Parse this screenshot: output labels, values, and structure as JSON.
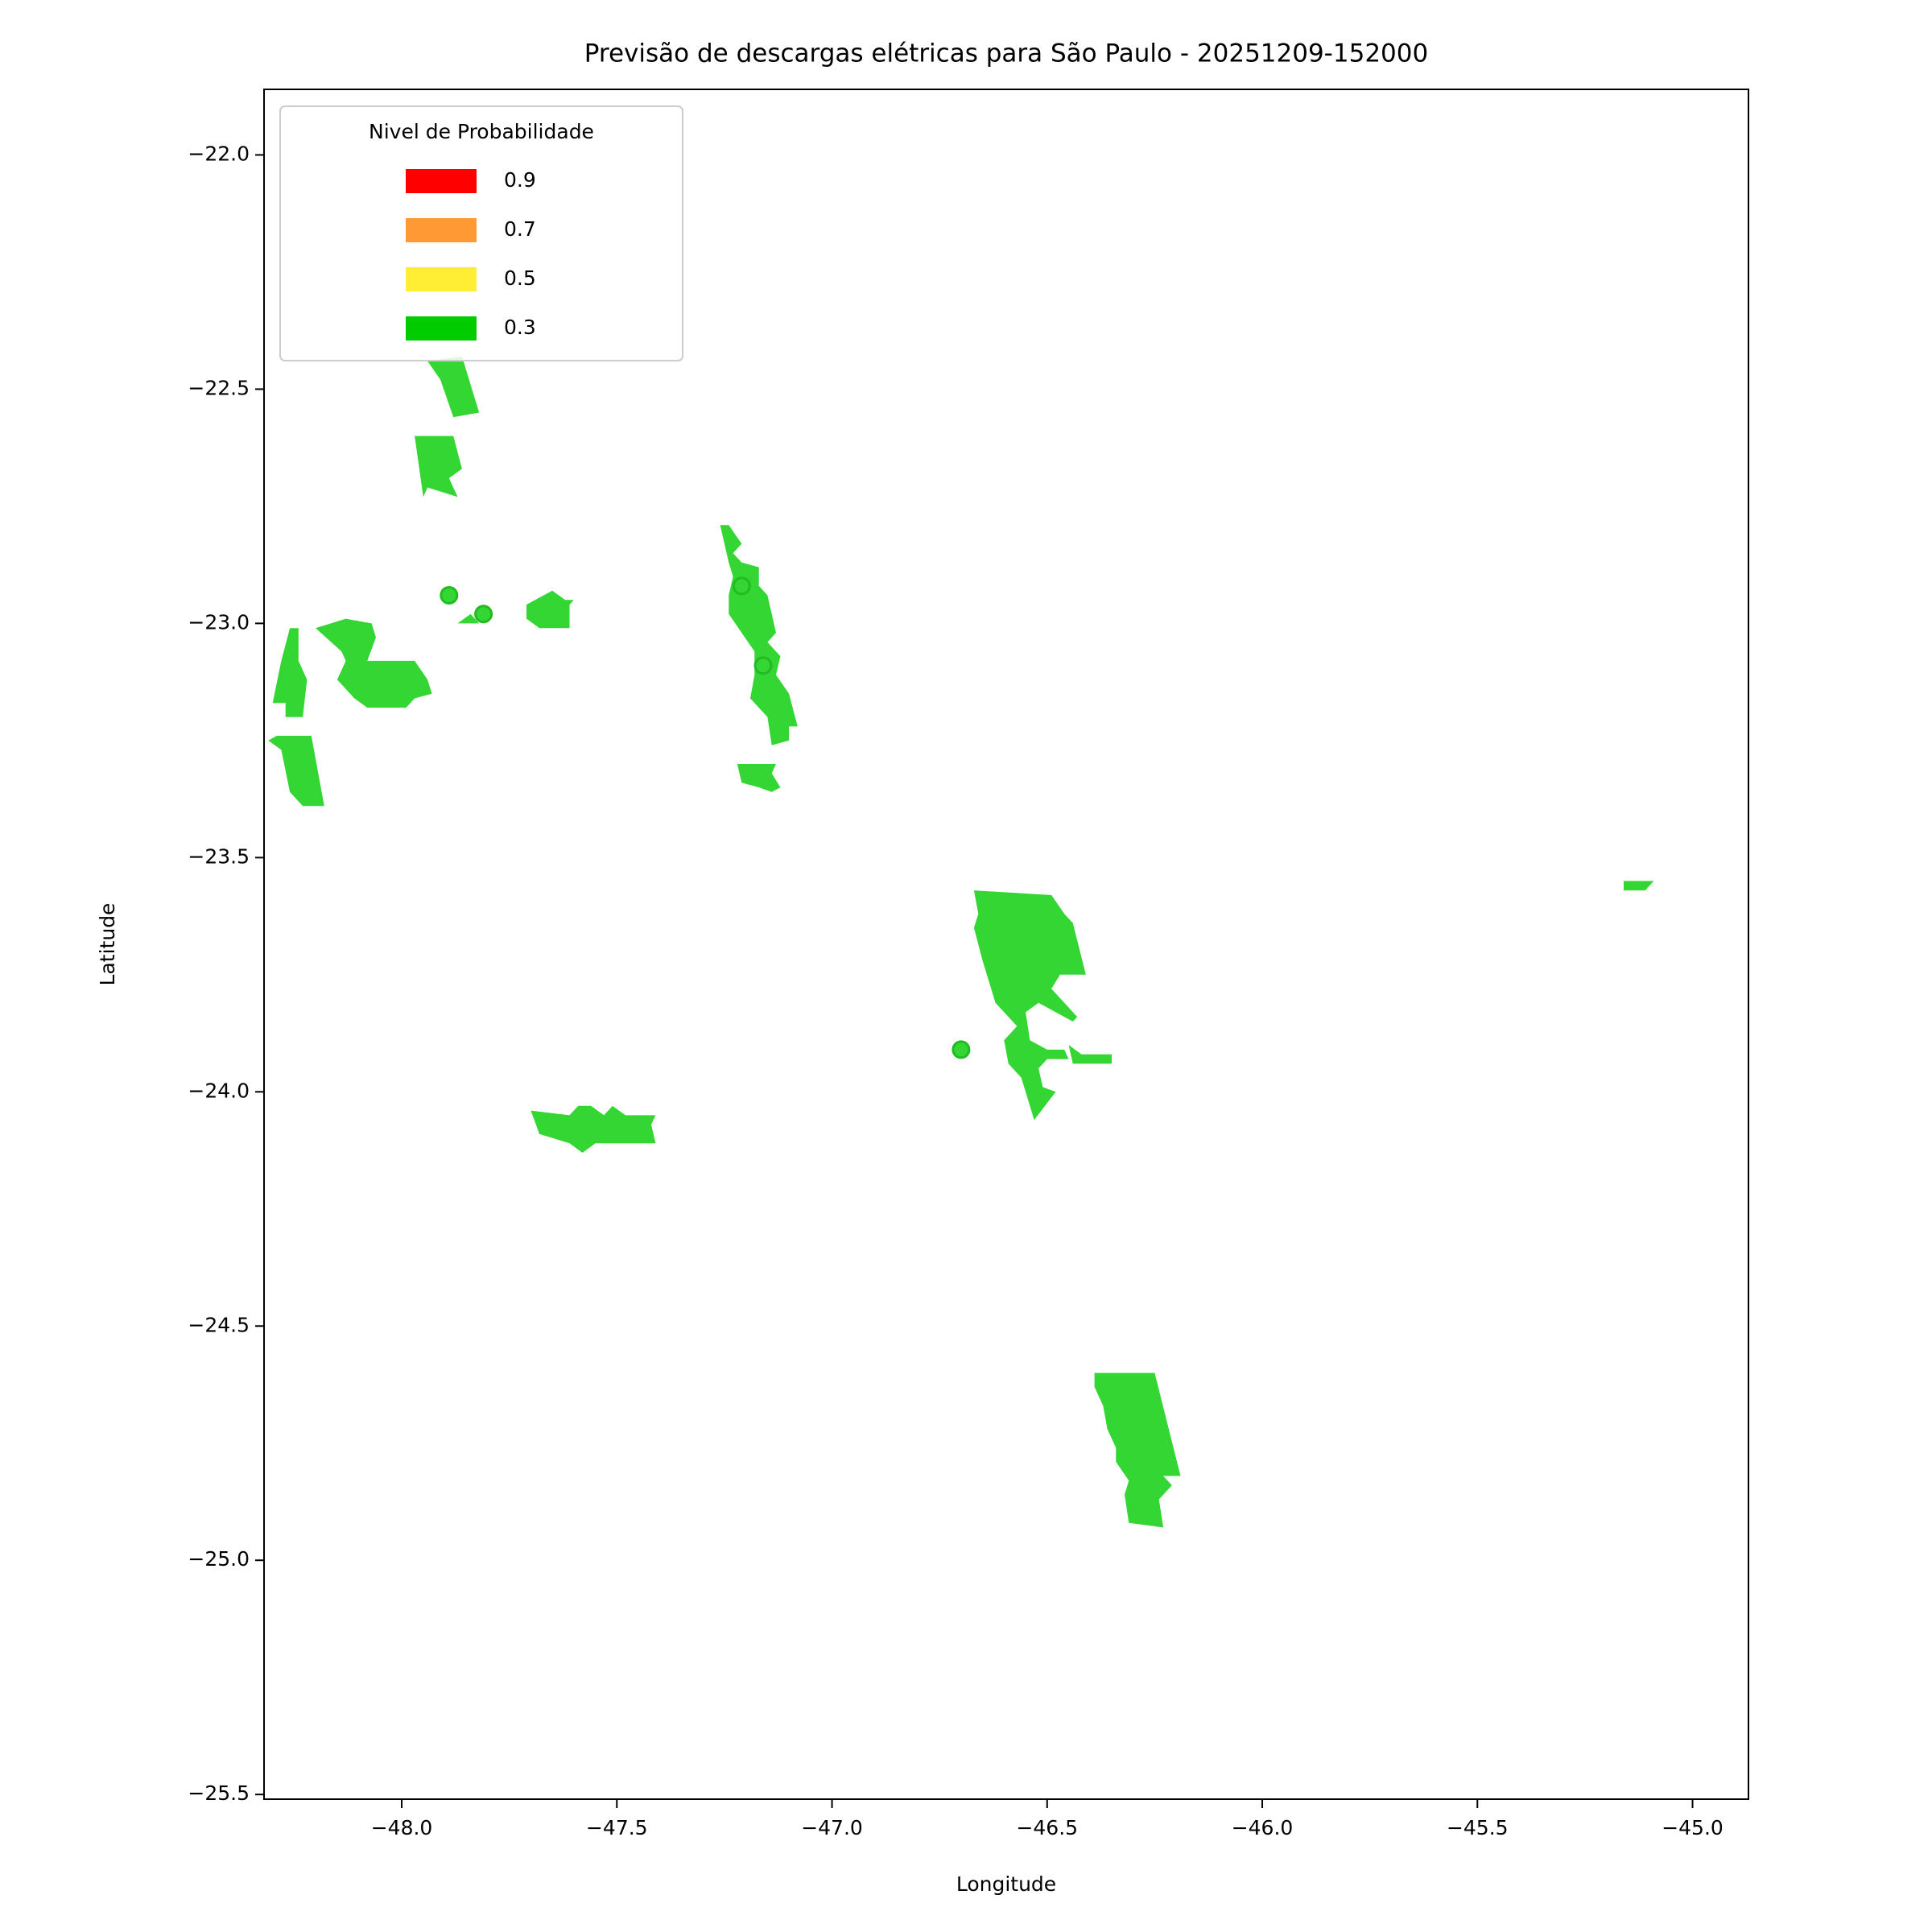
{
  "chart_data": {
    "type": "map",
    "title": "Previsão de descargas elétricas para São Paulo - 20251209-152000",
    "xlabel": "Longitude",
    "ylabel": "Latitude",
    "xlim": [
      -48.32,
      -44.87
    ],
    "ylim": [
      -25.51,
      -21.86
    ],
    "xticks": [
      {
        "value": -48,
        "label": "−48.0"
      },
      {
        "value": -47.5,
        "label": "−47.5"
      },
      {
        "value": -47,
        "label": "−47.0"
      },
      {
        "value": -46.5,
        "label": "−46.5"
      },
      {
        "value": -46,
        "label": "−46.0"
      },
      {
        "value": -45.5,
        "label": "−45.5"
      },
      {
        "value": -45,
        "label": "−45.0"
      }
    ],
    "yticks": [
      {
        "value": -22,
        "label": "−22.0"
      },
      {
        "value": -22.5,
        "label": "−22.5"
      },
      {
        "value": -23,
        "label": "−23.0"
      },
      {
        "value": -23.5,
        "label": "−23.5"
      },
      {
        "value": -24,
        "label": "−24.0"
      },
      {
        "value": -24.5,
        "label": "−24.5"
      },
      {
        "value": -25,
        "label": "−25.0"
      },
      {
        "value": -25.5,
        "label": "−25.5"
      }
    ],
    "legend": {
      "title": "Nivel de Probabilidade",
      "location": "upper left",
      "items": [
        {
          "name": "0.9",
          "color": "#ff0000"
        },
        {
          "name": "0.7",
          "color": "#ff9933"
        },
        {
          "name": "0.5",
          "color": "#ffee33"
        },
        {
          "name": "0.3",
          "color": "#00cc00"
        }
      ]
    },
    "polygon_color": "#33d633",
    "polygons": [
      {
        "lon": [
          -47.94,
          -47.86,
          -47.82,
          -47.88,
          -47.91
        ],
        "lat": [
          -22.44,
          -22.43,
          -22.55,
          -22.56,
          -22.48
        ]
      },
      {
        "lon": [
          -47.97,
          -47.88,
          -47.86,
          -47.89,
          -47.87,
          -47.94,
          -47.95
        ],
        "lat": [
          -22.6,
          -22.6,
          -22.67,
          -22.69,
          -22.73,
          -22.71,
          -22.73
        ]
      },
      {
        "lon": [
          -48.26,
          -48.24,
          -48.24,
          -48.22,
          -48.23,
          -48.27,
          -48.27,
          -48.3,
          -48.28
        ],
        "lat": [
          -23.01,
          -23.01,
          -23.08,
          -23.12,
          -23.2,
          -23.2,
          -23.17,
          -23.17,
          -23.08
        ]
      },
      {
        "lon": [
          -48.31,
          -48.29,
          -48.21,
          -48.18,
          -48.23,
          -48.26,
          -48.28
        ],
        "lat": [
          -23.25,
          -23.24,
          -23.24,
          -23.39,
          -23.39,
          -23.36,
          -23.27
        ]
      },
      {
        "lon": [
          -48.2,
          -48.13,
          -48.07,
          -48.06,
          -48.08,
          -47.97,
          -47.94,
          -47.93,
          -47.97,
          -47.99,
          -48.08,
          -48.11,
          -48.15,
          -48.13,
          -48.14
        ],
        "lat": [
          -23.01,
          -22.99,
          -23.0,
          -23.03,
          -23.08,
          -23.08,
          -23.12,
          -23.15,
          -23.16,
          -23.18,
          -23.18,
          -23.16,
          -23.12,
          -23.08,
          -23.06
        ]
      },
      {
        "lon": [
          -47.87,
          -47.84,
          -47.82
        ],
        "lat": [
          -23.0,
          -22.98,
          -23.0
        ]
      },
      {
        "lon": [
          -47.71,
          -47.67,
          -47.65,
          -47.62,
          -47.6,
          -47.61,
          -47.61,
          -47.68,
          -47.71
        ],
        "lat": [
          -22.96,
          -22.94,
          -22.93,
          -22.95,
          -22.95,
          -22.96,
          -23.01,
          -23.01,
          -22.99
        ]
      },
      {
        "lon": [
          -47.26,
          -47.24,
          -47.21,
          -47.23,
          -47.21,
          -47.17,
          -47.17,
          -47.15,
          -47.13,
          -47.15,
          -47.12,
          -47.13,
          -47.1,
          -47.08,
          -47.1,
          -47.1,
          -47.14,
          -47.15,
          -47.19,
          -47.18,
          -47.18,
          -47.21,
          -47.24,
          -47.24,
          -47.23,
          -47.24
        ],
        "lat": [
          -22.79,
          -22.79,
          -22.83,
          -22.85,
          -22.87,
          -22.88,
          -22.92,
          -22.94,
          -23.02,
          -23.04,
          -23.07,
          -23.11,
          -23.15,
          -23.22,
          -23.22,
          -23.25,
          -23.26,
          -23.2,
          -23.16,
          -23.11,
          -23.06,
          -23.02,
          -22.98,
          -22.94,
          -22.9,
          -22.87
        ]
      },
      {
        "lon": [
          -47.22,
          -47.13,
          -47.14,
          -47.12,
          -47.14,
          -47.17,
          -47.21
        ],
        "lat": [
          -23.3,
          -23.3,
          -23.32,
          -23.35,
          -23.36,
          -23.35,
          -23.34
        ]
      },
      {
        "lon": [
          -46.67,
          -46.49,
          -46.46,
          -46.44,
          -46.41,
          -46.47,
          -46.49,
          -46.46,
          -46.43,
          -46.44,
          -46.52,
          -46.55,
          -46.54,
          -46.5,
          -46.46,
          -46.45,
          -46.5,
          -46.52,
          -46.51,
          -46.48,
          -46.53,
          -46.56,
          -46.59,
          -46.6,
          -46.57,
          -46.62,
          -46.65,
          -46.67,
          -46.66
        ],
        "lat": [
          -23.57,
          -23.58,
          -23.62,
          -23.64,
          -23.75,
          -23.75,
          -23.78,
          -23.81,
          -23.84,
          -23.85,
          -23.81,
          -23.83,
          -23.89,
          -23.91,
          -23.91,
          -23.93,
          -23.93,
          -23.95,
          -23.99,
          -24.0,
          -24.06,
          -23.97,
          -23.94,
          -23.89,
          -23.86,
          -23.81,
          -23.72,
          -23.65,
          -23.62
        ]
      },
      {
        "lon": [
          -46.45,
          -46.42,
          -46.35,
          -46.35,
          -46.44
        ],
        "lat": [
          -23.9,
          -23.92,
          -23.92,
          -23.94,
          -23.94
        ]
      },
      {
        "lon": [
          -47.7,
          -47.61,
          -47.59,
          -47.56,
          -47.53,
          -47.51,
          -47.48,
          -47.41,
          -47.42,
          -47.41,
          -47.52,
          -47.55,
          -47.58,
          -47.61,
          -47.68
        ],
        "lat": [
          -24.04,
          -24.05,
          -24.03,
          -24.03,
          -24.05,
          -24.03,
          -24.05,
          -24.05,
          -24.07,
          -24.11,
          -24.11,
          -24.11,
          -24.13,
          -24.11,
          -24.09
        ]
      },
      {
        "lon": [
          -46.39,
          -46.25,
          -46.19,
          -46.23,
          -46.21,
          -46.24,
          -46.23,
          -46.31,
          -46.32,
          -46.31,
          -46.34,
          -46.34,
          -46.36,
          -46.37,
          -46.39
        ],
        "lat": [
          -24.6,
          -24.6,
          -24.82,
          -24.82,
          -24.84,
          -24.87,
          -24.93,
          -24.92,
          -24.86,
          -24.83,
          -24.79,
          -24.76,
          -24.72,
          -24.67,
          -24.63
        ]
      },
      {
        "lon": [
          -45.16,
          -45.09,
          -45.11,
          -45.16
        ],
        "lat": [
          -23.55,
          -23.55,
          -23.57,
          -23.57
        ]
      }
    ],
    "points": {
      "color": "#33d633",
      "lon": [
        -47.89,
        -47.81,
        -47.21,
        -47.16,
        -46.7
      ],
      "lat": [
        -22.94,
        -22.98,
        -22.92,
        -23.09,
        -23.91
      ]
    }
  }
}
